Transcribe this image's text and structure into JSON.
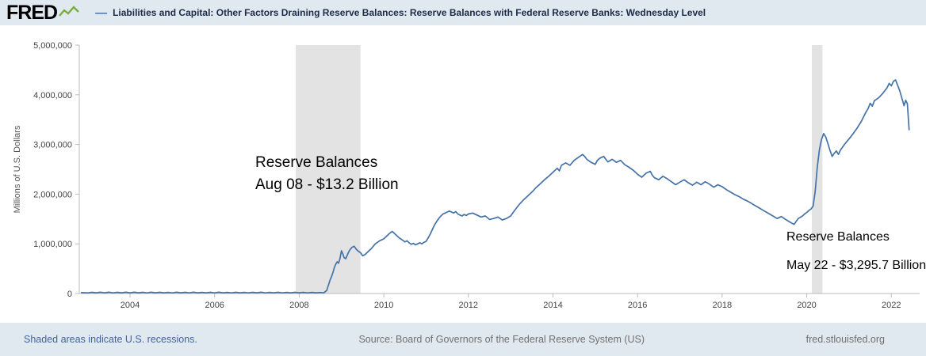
{
  "header": {
    "logo_text": "FRED",
    "legend_dash": "—",
    "series_title": "Liabilities and Capital: Other Factors Draining Reserve Balances: Reserve Balances with Federal Reserve Banks: Wednesday Level"
  },
  "annotations": [
    {
      "line1": "Reserve Balances",
      "line2": "Aug 08 - $13.2 Billion"
    },
    {
      "line1": "Reserve Balances",
      "line2": "May 22 - $3,295.7 Billion"
    }
  ],
  "footer": {
    "recessions_note": "Shaded areas indicate U.S. recessions.",
    "source": "Source: Board of Governors of the Federal Reserve System (US)",
    "site": "fred.stlouisfed.org"
  },
  "chart_data": {
    "type": "line",
    "title": "Liabilities and Capital: Other Factors Draining Reserve Balances: Reserve Balances with Federal Reserve Banks: Wednesday Level",
    "xlabel": "",
    "ylabel": "Millions of U.S. Dollars",
    "xlim": [
      2002.8,
      2022.67
    ],
    "ylim": [
      0,
      5000000
    ],
    "grid": false,
    "line_color": "#4572a7",
    "recession_color": "#e3e3e3",
    "axis_color": "#bbbbbb",
    "x_ticks": [
      {
        "value": 2004,
        "label": "2004"
      },
      {
        "value": 2006,
        "label": "2006"
      },
      {
        "value": 2008,
        "label": "2008"
      },
      {
        "value": 2010,
        "label": "2010"
      },
      {
        "value": 2012,
        "label": "2012"
      },
      {
        "value": 2014,
        "label": "2014"
      },
      {
        "value": 2016,
        "label": "2016"
      },
      {
        "value": 2018,
        "label": "2018"
      },
      {
        "value": 2020,
        "label": "2020"
      },
      {
        "value": 2022,
        "label": "2022"
      }
    ],
    "y_ticks": [
      {
        "value": 0,
        "label": "0"
      },
      {
        "value": 1000000,
        "label": "1,000,000"
      },
      {
        "value": 2000000,
        "label": "2,000,000"
      },
      {
        "value": 3000000,
        "label": "3,000,000"
      },
      {
        "value": 4000000,
        "label": "4,000,000"
      },
      {
        "value": 5000000,
        "label": "5,000,000"
      }
    ],
    "recessions": [
      [
        2007.92,
        2009.45
      ],
      [
        2020.12,
        2020.37
      ]
    ],
    "series": [
      {
        "name": "Reserve Balances with Federal Reserve Banks: Wednesday Level",
        "points": [
          [
            2002.85,
            18000
          ],
          [
            2003.0,
            12000
          ],
          [
            2003.1,
            24000
          ],
          [
            2003.2,
            14000
          ],
          [
            2003.3,
            26000
          ],
          [
            2003.4,
            15000
          ],
          [
            2003.5,
            25000
          ],
          [
            2003.6,
            13000
          ],
          [
            2003.7,
            24000
          ],
          [
            2003.8,
            14000
          ],
          [
            2003.9,
            25000
          ],
          [
            2004.0,
            15000
          ],
          [
            2004.1,
            26000
          ],
          [
            2004.2,
            14000
          ],
          [
            2004.3,
            24000
          ],
          [
            2004.4,
            13000
          ],
          [
            2004.5,
            25000
          ],
          [
            2004.6,
            15000
          ],
          [
            2004.7,
            24000
          ],
          [
            2004.8,
            14000
          ],
          [
            2004.9,
            23000
          ],
          [
            2005.0,
            13000
          ],
          [
            2005.1,
            25000
          ],
          [
            2005.2,
            14000
          ],
          [
            2005.3,
            24000
          ],
          [
            2005.4,
            13000
          ],
          [
            2005.5,
            25000
          ],
          [
            2005.6,
            15000
          ],
          [
            2005.7,
            23000
          ],
          [
            2005.8,
            14000
          ],
          [
            2005.9,
            24000
          ],
          [
            2006.0,
            13000
          ],
          [
            2006.1,
            25000
          ],
          [
            2006.2,
            14000
          ],
          [
            2006.3,
            23000
          ],
          [
            2006.4,
            13000
          ],
          [
            2006.5,
            24000
          ],
          [
            2006.6,
            14000
          ],
          [
            2006.7,
            23000
          ],
          [
            2006.8,
            13000
          ],
          [
            2006.9,
            24000
          ],
          [
            2007.0,
            14000
          ],
          [
            2007.1,
            25000
          ],
          [
            2007.2,
            13000
          ],
          [
            2007.3,
            23000
          ],
          [
            2007.4,
            14000
          ],
          [
            2007.5,
            24000
          ],
          [
            2007.6,
            13000
          ],
          [
            2007.7,
            23000
          ],
          [
            2007.8,
            14000
          ],
          [
            2007.9,
            24000
          ],
          [
            2008.0,
            15000
          ],
          [
            2008.1,
            23000
          ],
          [
            2008.2,
            13000
          ],
          [
            2008.3,
            22000
          ],
          [
            2008.4,
            14000
          ],
          [
            2008.5,
            20000
          ],
          [
            2008.58,
            13200
          ],
          [
            2008.65,
            60000
          ],
          [
            2008.7,
            190000
          ],
          [
            2008.73,
            270000
          ],
          [
            2008.76,
            330000
          ],
          [
            2008.8,
            430000
          ],
          [
            2008.83,
            520000
          ],
          [
            2008.87,
            600000
          ],
          [
            2008.9,
            640000
          ],
          [
            2008.93,
            610000
          ],
          [
            2008.96,
            690000
          ],
          [
            2009.0,
            860000
          ],
          [
            2009.03,
            800000
          ],
          [
            2009.06,
            720000
          ],
          [
            2009.1,
            700000
          ],
          [
            2009.13,
            760000
          ],
          [
            2009.16,
            820000
          ],
          [
            2009.2,
            880000
          ],
          [
            2009.25,
            930000
          ],
          [
            2009.3,
            950000
          ],
          [
            2009.35,
            890000
          ],
          [
            2009.4,
            850000
          ],
          [
            2009.45,
            820000
          ],
          [
            2009.5,
            760000
          ],
          [
            2009.55,
            780000
          ],
          [
            2009.6,
            820000
          ],
          [
            2009.65,
            860000
          ],
          [
            2009.7,
            900000
          ],
          [
            2009.75,
            950000
          ],
          [
            2009.8,
            1000000
          ],
          [
            2009.85,
            1030000
          ],
          [
            2009.9,
            1060000
          ],
          [
            2009.95,
            1080000
          ],
          [
            2010.0,
            1100000
          ],
          [
            2010.05,
            1140000
          ],
          [
            2010.1,
            1180000
          ],
          [
            2010.15,
            1220000
          ],
          [
            2010.2,
            1250000
          ],
          [
            2010.25,
            1210000
          ],
          [
            2010.3,
            1170000
          ],
          [
            2010.35,
            1130000
          ],
          [
            2010.4,
            1100000
          ],
          [
            2010.45,
            1070000
          ],
          [
            2010.5,
            1040000
          ],
          [
            2010.55,
            1060000
          ],
          [
            2010.6,
            1020000
          ],
          [
            2010.65,
            990000
          ],
          [
            2010.7,
            1010000
          ],
          [
            2010.75,
            980000
          ],
          [
            2010.8,
            1000000
          ],
          [
            2010.85,
            1020000
          ],
          [
            2010.9,
            1000000
          ],
          [
            2010.95,
            1030000
          ],
          [
            2011.0,
            1050000
          ],
          [
            2011.05,
            1120000
          ],
          [
            2011.1,
            1200000
          ],
          [
            2011.15,
            1290000
          ],
          [
            2011.2,
            1380000
          ],
          [
            2011.25,
            1450000
          ],
          [
            2011.3,
            1510000
          ],
          [
            2011.35,
            1560000
          ],
          [
            2011.4,
            1600000
          ],
          [
            2011.45,
            1620000
          ],
          [
            2011.5,
            1640000
          ],
          [
            2011.55,
            1660000
          ],
          [
            2011.6,
            1640000
          ],
          [
            2011.65,
            1620000
          ],
          [
            2011.7,
            1650000
          ],
          [
            2011.75,
            1600000
          ],
          [
            2011.8,
            1580000
          ],
          [
            2011.85,
            1560000
          ],
          [
            2011.9,
            1590000
          ],
          [
            2011.95,
            1570000
          ],
          [
            2012.0,
            1600000
          ],
          [
            2012.1,
            1620000
          ],
          [
            2012.2,
            1580000
          ],
          [
            2012.3,
            1540000
          ],
          [
            2012.4,
            1560000
          ],
          [
            2012.5,
            1490000
          ],
          [
            2012.6,
            1510000
          ],
          [
            2012.7,
            1540000
          ],
          [
            2012.8,
            1480000
          ],
          [
            2012.9,
            1510000
          ],
          [
            2013.0,
            1560000
          ],
          [
            2013.1,
            1680000
          ],
          [
            2013.2,
            1790000
          ],
          [
            2013.3,
            1880000
          ],
          [
            2013.4,
            1960000
          ],
          [
            2013.5,
            2040000
          ],
          [
            2013.6,
            2130000
          ],
          [
            2013.7,
            2210000
          ],
          [
            2013.8,
            2290000
          ],
          [
            2013.9,
            2360000
          ],
          [
            2014.0,
            2440000
          ],
          [
            2014.1,
            2520000
          ],
          [
            2014.15,
            2470000
          ],
          [
            2014.2,
            2580000
          ],
          [
            2014.3,
            2630000
          ],
          [
            2014.4,
            2580000
          ],
          [
            2014.5,
            2680000
          ],
          [
            2014.6,
            2740000
          ],
          [
            2014.7,
            2800000
          ],
          [
            2014.75,
            2760000
          ],
          [
            2014.8,
            2700000
          ],
          [
            2014.9,
            2640000
          ],
          [
            2015.0,
            2600000
          ],
          [
            2015.05,
            2680000
          ],
          [
            2015.1,
            2720000
          ],
          [
            2015.2,
            2760000
          ],
          [
            2015.25,
            2700000
          ],
          [
            2015.3,
            2650000
          ],
          [
            2015.4,
            2700000
          ],
          [
            2015.5,
            2640000
          ],
          [
            2015.6,
            2680000
          ],
          [
            2015.7,
            2590000
          ],
          [
            2015.8,
            2540000
          ],
          [
            2015.9,
            2480000
          ],
          [
            2016.0,
            2400000
          ],
          [
            2016.1,
            2340000
          ],
          [
            2016.2,
            2420000
          ],
          [
            2016.3,
            2460000
          ],
          [
            2016.35,
            2380000
          ],
          [
            2016.4,
            2330000
          ],
          [
            2016.5,
            2290000
          ],
          [
            2016.6,
            2360000
          ],
          [
            2016.7,
            2310000
          ],
          [
            2016.8,
            2250000
          ],
          [
            2016.9,
            2190000
          ],
          [
            2017.0,
            2240000
          ],
          [
            2017.1,
            2290000
          ],
          [
            2017.2,
            2230000
          ],
          [
            2017.3,
            2180000
          ],
          [
            2017.4,
            2240000
          ],
          [
            2017.5,
            2190000
          ],
          [
            2017.6,
            2250000
          ],
          [
            2017.7,
            2200000
          ],
          [
            2017.8,
            2140000
          ],
          [
            2017.9,
            2190000
          ],
          [
            2018.0,
            2150000
          ],
          [
            2018.1,
            2090000
          ],
          [
            2018.2,
            2040000
          ],
          [
            2018.3,
            1990000
          ],
          [
            2018.4,
            1950000
          ],
          [
            2018.5,
            1900000
          ],
          [
            2018.6,
            1860000
          ],
          [
            2018.7,
            1810000
          ],
          [
            2018.8,
            1760000
          ],
          [
            2018.9,
            1710000
          ],
          [
            2019.0,
            1660000
          ],
          [
            2019.1,
            1610000
          ],
          [
            2019.2,
            1560000
          ],
          [
            2019.3,
            1510000
          ],
          [
            2019.4,
            1550000
          ],
          [
            2019.5,
            1490000
          ],
          [
            2019.6,
            1440000
          ],
          [
            2019.7,
            1390000
          ],
          [
            2019.75,
            1450000
          ],
          [
            2019.8,
            1510000
          ],
          [
            2019.9,
            1560000
          ],
          [
            2019.95,
            1600000
          ],
          [
            2020.0,
            1630000
          ],
          [
            2020.05,
            1670000
          ],
          [
            2020.1,
            1700000
          ],
          [
            2020.15,
            1760000
          ],
          [
            2020.2,
            2050000
          ],
          [
            2020.25,
            2550000
          ],
          [
            2020.3,
            2900000
          ],
          [
            2020.35,
            3100000
          ],
          [
            2020.4,
            3220000
          ],
          [
            2020.45,
            3150000
          ],
          [
            2020.5,
            3020000
          ],
          [
            2020.55,
            2880000
          ],
          [
            2020.6,
            2760000
          ],
          [
            2020.65,
            2820000
          ],
          [
            2020.7,
            2870000
          ],
          [
            2020.75,
            2800000
          ],
          [
            2020.8,
            2890000
          ],
          [
            2020.85,
            2950000
          ],
          [
            2020.9,
            3010000
          ],
          [
            2020.95,
            3060000
          ],
          [
            2021.0,
            3110000
          ],
          [
            2021.1,
            3220000
          ],
          [
            2021.2,
            3340000
          ],
          [
            2021.3,
            3480000
          ],
          [
            2021.4,
            3650000
          ],
          [
            2021.45,
            3720000
          ],
          [
            2021.5,
            3830000
          ],
          [
            2021.55,
            3770000
          ],
          [
            2021.6,
            3880000
          ],
          [
            2021.7,
            3940000
          ],
          [
            2021.8,
            4030000
          ],
          [
            2021.9,
            4140000
          ],
          [
            2021.95,
            4230000
          ],
          [
            2022.0,
            4180000
          ],
          [
            2022.05,
            4270000
          ],
          [
            2022.1,
            4300000
          ],
          [
            2022.15,
            4190000
          ],
          [
            2022.2,
            4080000
          ],
          [
            2022.25,
            3930000
          ],
          [
            2022.3,
            3780000
          ],
          [
            2022.34,
            3890000
          ],
          [
            2022.38,
            3820000
          ],
          [
            2022.42,
            3295700
          ]
        ]
      }
    ]
  }
}
